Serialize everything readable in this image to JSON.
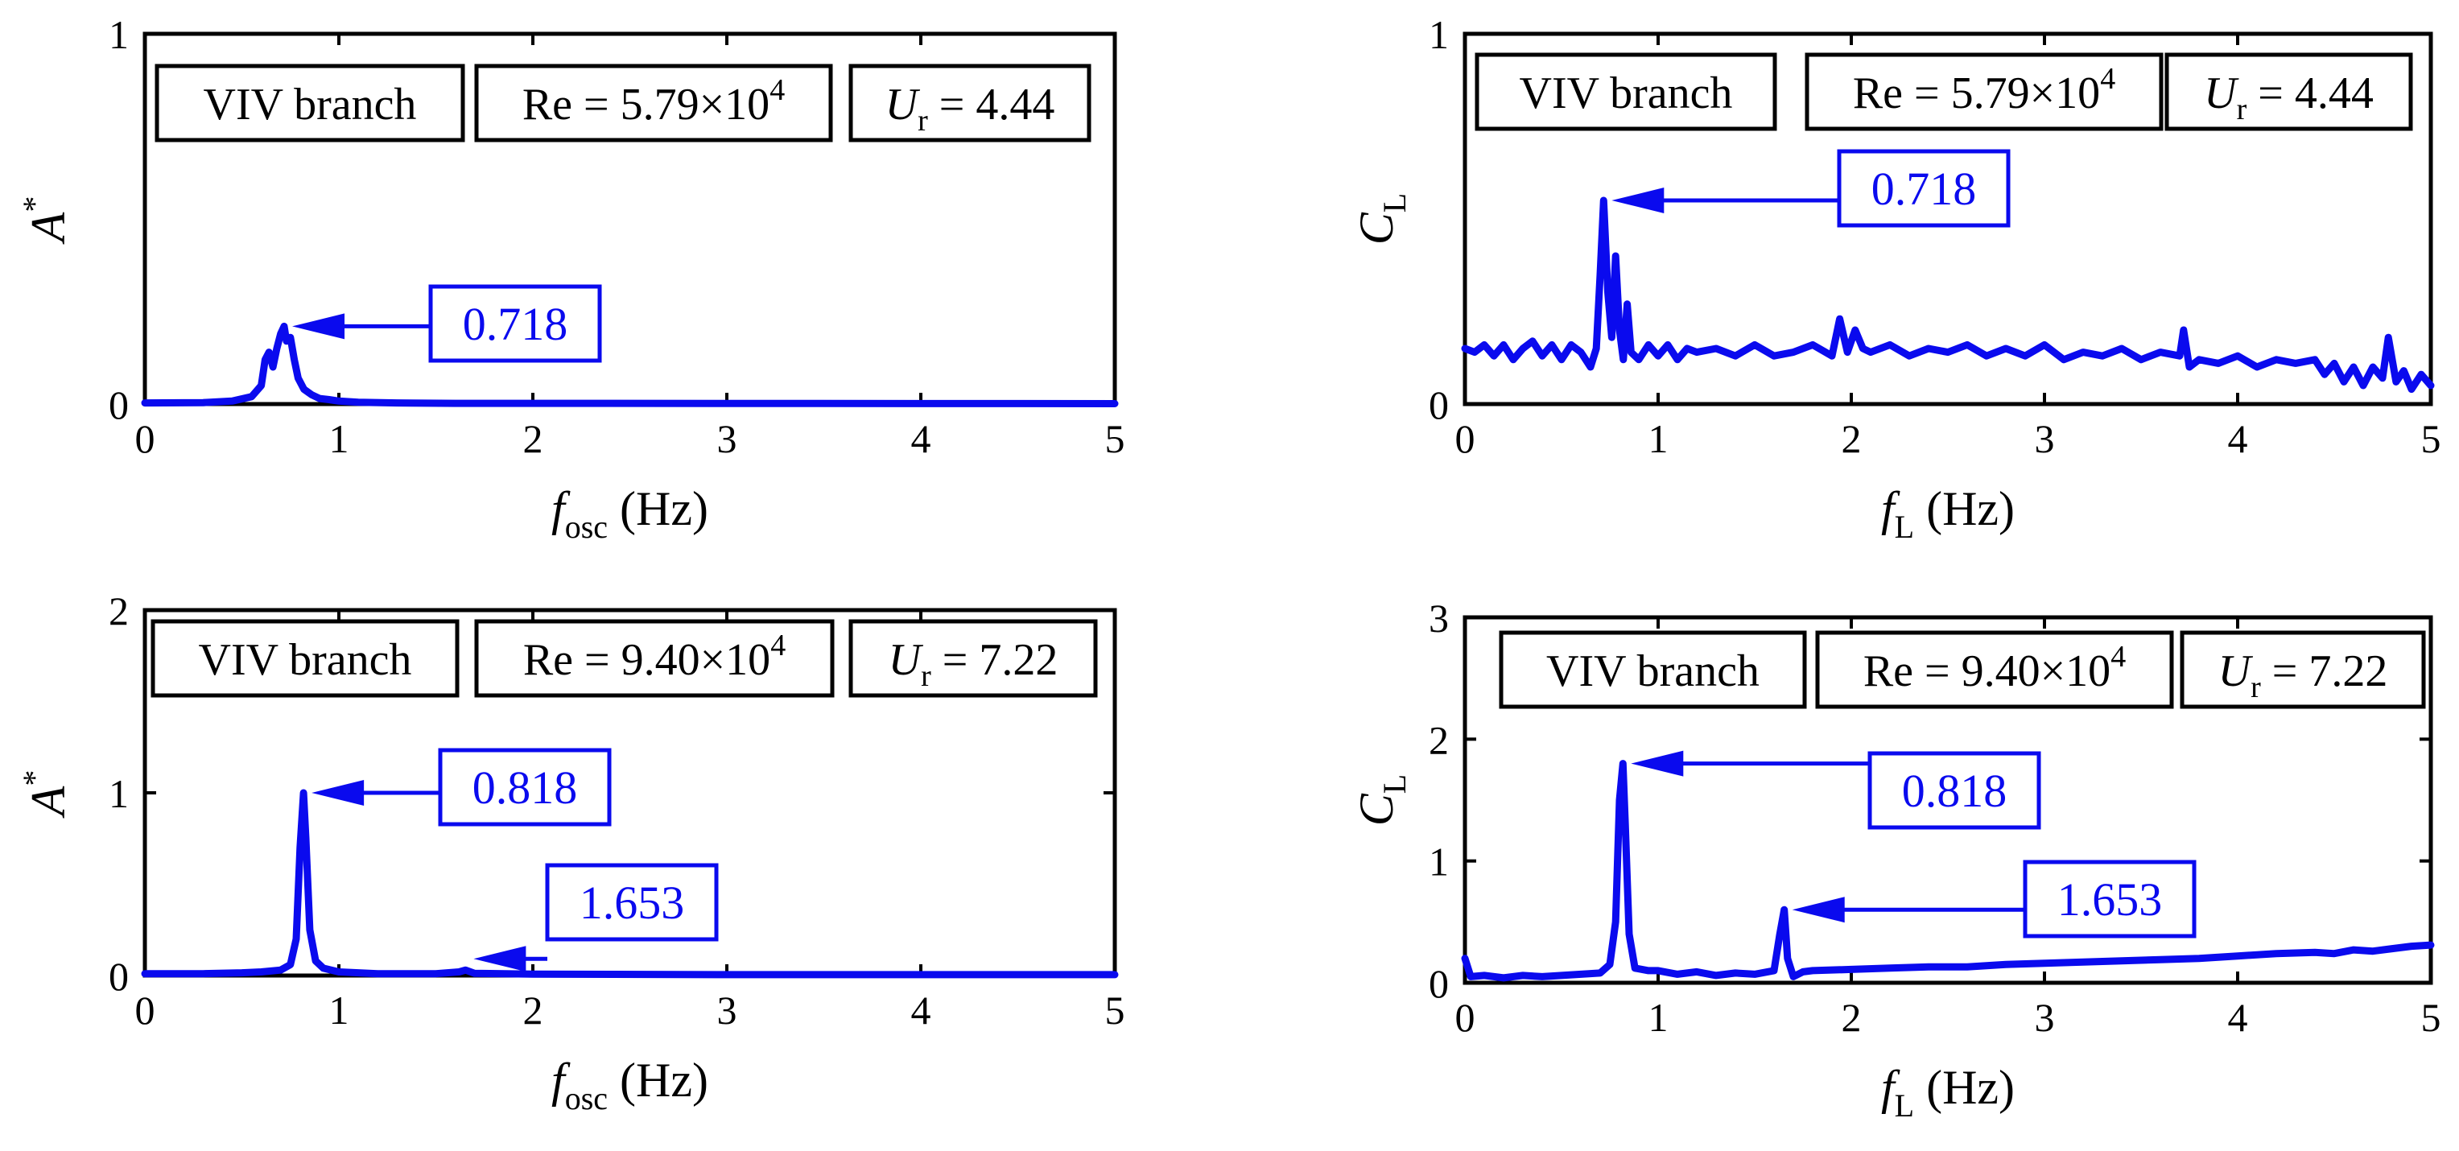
{
  "chart_data": [
    {
      "id": "top-left",
      "type": "line",
      "xlim": [
        0,
        5
      ],
      "ylim": [
        0,
        1
      ],
      "xticks": [
        0,
        1,
        2,
        3,
        4,
        5
      ],
      "yticks": [
        0,
        1
      ],
      "xlabel": {
        "main": "f",
        "sub": "osc",
        "unit": " (Hz)"
      },
      "ylabel": {
        "main": "A",
        "sup": "*"
      },
      "tags": {
        "branch": "VIV branch",
        "re_prefix": "Re = 5.79×10",
        "re_exp": "4",
        "ur_main": "U",
        "ur_sub": "r",
        "ur_value": " = 4.44"
      },
      "annotations": [
        {
          "label": "0.718",
          "x": 0.718,
          "y": 0.21
        }
      ],
      "series": {
        "name": "A*",
        "color": "#0a0aee",
        "points": [
          [
            0,
            0.003
          ],
          [
            0.3,
            0.004
          ],
          [
            0.45,
            0.008
          ],
          [
            0.55,
            0.02
          ],
          [
            0.6,
            0.05
          ],
          [
            0.62,
            0.12
          ],
          [
            0.64,
            0.14
          ],
          [
            0.66,
            0.1
          ],
          [
            0.68,
            0.15
          ],
          [
            0.7,
            0.19
          ],
          [
            0.718,
            0.21
          ],
          [
            0.73,
            0.17
          ],
          [
            0.75,
            0.18
          ],
          [
            0.77,
            0.12
          ],
          [
            0.79,
            0.07
          ],
          [
            0.82,
            0.04
          ],
          [
            0.86,
            0.025
          ],
          [
            0.9,
            0.015
          ],
          [
            0.95,
            0.012
          ],
          [
            1,
            0.008
          ],
          [
            1.1,
            0.005
          ],
          [
            1.3,
            0.003
          ],
          [
            1.6,
            0.002
          ],
          [
            2,
            0.002
          ],
          [
            5,
            0.001
          ]
        ]
      }
    },
    {
      "id": "top-right",
      "type": "line",
      "xlim": [
        0,
        5
      ],
      "ylim": [
        0,
        1
      ],
      "xticks": [
        0,
        1,
        2,
        3,
        4,
        5
      ],
      "yticks": [
        0,
        1
      ],
      "xlabel": {
        "main": "f",
        "sub": "L",
        "unit": " (Hz)"
      },
      "ylabel": {
        "main": "C",
        "sub": "L"
      },
      "tags": {
        "branch": "VIV branch",
        "re_prefix": "Re = 5.79×10",
        "re_exp": "4",
        "ur_main": "U",
        "ur_sub": "r",
        "ur_value": " = 4.44"
      },
      "annotations": [
        {
          "label": "0.718",
          "x": 0.718,
          "y": 0.55
        }
      ],
      "series": {
        "name": "CL",
        "color": "#0a0aee",
        "points": [
          [
            0,
            0.15
          ],
          [
            0.05,
            0.14
          ],
          [
            0.1,
            0.16
          ],
          [
            0.15,
            0.13
          ],
          [
            0.2,
            0.16
          ],
          [
            0.25,
            0.12
          ],
          [
            0.3,
            0.15
          ],
          [
            0.35,
            0.17
          ],
          [
            0.4,
            0.13
          ],
          [
            0.45,
            0.16
          ],
          [
            0.5,
            0.12
          ],
          [
            0.55,
            0.16
          ],
          [
            0.6,
            0.14
          ],
          [
            0.65,
            0.1
          ],
          [
            0.68,
            0.15
          ],
          [
            0.7,
            0.35
          ],
          [
            0.718,
            0.55
          ],
          [
            0.74,
            0.3
          ],
          [
            0.76,
            0.18
          ],
          [
            0.78,
            0.4
          ],
          [
            0.8,
            0.2
          ],
          [
            0.82,
            0.12
          ],
          [
            0.84,
            0.27
          ],
          [
            0.86,
            0.14
          ],
          [
            0.9,
            0.12
          ],
          [
            0.95,
            0.16
          ],
          [
            1,
            0.13
          ],
          [
            1.05,
            0.16
          ],
          [
            1.1,
            0.12
          ],
          [
            1.15,
            0.15
          ],
          [
            1.2,
            0.14
          ],
          [
            1.3,
            0.15
          ],
          [
            1.4,
            0.13
          ],
          [
            1.5,
            0.16
          ],
          [
            1.6,
            0.13
          ],
          [
            1.7,
            0.14
          ],
          [
            1.8,
            0.16
          ],
          [
            1.9,
            0.13
          ],
          [
            1.94,
            0.23
          ],
          [
            1.98,
            0.14
          ],
          [
            2.02,
            0.2
          ],
          [
            2.06,
            0.15
          ],
          [
            2.1,
            0.14
          ],
          [
            2.2,
            0.16
          ],
          [
            2.3,
            0.13
          ],
          [
            2.4,
            0.15
          ],
          [
            2.5,
            0.14
          ],
          [
            2.6,
            0.16
          ],
          [
            2.7,
            0.13
          ],
          [
            2.8,
            0.15
          ],
          [
            2.9,
            0.13
          ],
          [
            3,
            0.16
          ],
          [
            3.1,
            0.12
          ],
          [
            3.2,
            0.14
          ],
          [
            3.3,
            0.13
          ],
          [
            3.4,
            0.15
          ],
          [
            3.5,
            0.12
          ],
          [
            3.6,
            0.14
          ],
          [
            3.7,
            0.13
          ],
          [
            3.72,
            0.2
          ],
          [
            3.75,
            0.1
          ],
          [
            3.8,
            0.12
          ],
          [
            3.9,
            0.11
          ],
          [
            4,
            0.13
          ],
          [
            4.1,
            0.1
          ],
          [
            4.2,
            0.12
          ],
          [
            4.3,
            0.11
          ],
          [
            4.4,
            0.12
          ],
          [
            4.45,
            0.08
          ],
          [
            4.5,
            0.11
          ],
          [
            4.55,
            0.06
          ],
          [
            4.6,
            0.1
          ],
          [
            4.65,
            0.05
          ],
          [
            4.7,
            0.1
          ],
          [
            4.75,
            0.07
          ],
          [
            4.78,
            0.18
          ],
          [
            4.82,
            0.06
          ],
          [
            4.86,
            0.09
          ],
          [
            4.9,
            0.04
          ],
          [
            4.95,
            0.08
          ],
          [
            5,
            0.05
          ]
        ]
      }
    },
    {
      "id": "bottom-left",
      "type": "line",
      "xlim": [
        0,
        5
      ],
      "ylim": [
        0,
        2
      ],
      "xticks": [
        0,
        1,
        2,
        3,
        4,
        5
      ],
      "yticks": [
        0,
        1,
        2
      ],
      "xlabel": {
        "main": "f",
        "sub": "osc",
        "unit": " (Hz)"
      },
      "ylabel": {
        "main": "A",
        "sup": "*"
      },
      "tags": {
        "branch": "VIV branch",
        "re_prefix": "Re = 9.40×10",
        "re_exp": "4",
        "ur_main": "U",
        "ur_sub": "r",
        "ur_value": " = 7.22"
      },
      "annotations": [
        {
          "label": "0.818",
          "x": 0.818,
          "y": 1.0
        },
        {
          "label": "1.653",
          "x": 1.653,
          "y": 0.03
        }
      ],
      "series": {
        "name": "A*",
        "color": "#0a0aee",
        "points": [
          [
            0,
            0.01
          ],
          [
            0.3,
            0.01
          ],
          [
            0.5,
            0.015
          ],
          [
            0.6,
            0.02
          ],
          [
            0.7,
            0.03
          ],
          [
            0.75,
            0.06
          ],
          [
            0.78,
            0.2
          ],
          [
            0.8,
            0.7
          ],
          [
            0.818,
            1.0
          ],
          [
            0.83,
            0.75
          ],
          [
            0.85,
            0.25
          ],
          [
            0.88,
            0.08
          ],
          [
            0.92,
            0.04
          ],
          [
            1,
            0.02
          ],
          [
            1.2,
            0.01
          ],
          [
            1.5,
            0.01
          ],
          [
            1.62,
            0.02
          ],
          [
            1.653,
            0.03
          ],
          [
            1.7,
            0.012
          ],
          [
            2,
            0.008
          ],
          [
            3,
            0.005
          ],
          [
            5,
            0.005
          ]
        ]
      }
    },
    {
      "id": "bottom-right",
      "type": "line",
      "xlim": [
        0,
        5
      ],
      "ylim": [
        0,
        3
      ],
      "xticks": [
        0,
        1,
        2,
        3,
        4,
        5
      ],
      "yticks": [
        0,
        1,
        2,
        3
      ],
      "xlabel": {
        "main": "f",
        "sub": "L",
        "unit": " (Hz)"
      },
      "ylabel": {
        "main": "C",
        "sub": "L"
      },
      "tags": {
        "branch": "VIV branch",
        "re_prefix": "Re = 9.40×10",
        "re_exp": "4",
        "ur_main": "U",
        "ur_sub": "r",
        "ur_value": " = 7.22"
      },
      "annotations": [
        {
          "label": "0.818",
          "x": 0.818,
          "y": 1.8
        },
        {
          "label": "1.653",
          "x": 1.653,
          "y": 0.6
        }
      ],
      "series": {
        "name": "CL",
        "color": "#0a0aee",
        "points": [
          [
            0,
            0.2
          ],
          [
            0.03,
            0.05
          ],
          [
            0.1,
            0.06
          ],
          [
            0.2,
            0.04
          ],
          [
            0.3,
            0.06
          ],
          [
            0.4,
            0.05
          ],
          [
            0.5,
            0.06
          ],
          [
            0.6,
            0.07
          ],
          [
            0.7,
            0.08
          ],
          [
            0.75,
            0.15
          ],
          [
            0.78,
            0.5
          ],
          [
            0.8,
            1.5
          ],
          [
            0.818,
            1.8
          ],
          [
            0.83,
            1.3
          ],
          [
            0.85,
            0.4
          ],
          [
            0.88,
            0.12
          ],
          [
            0.95,
            0.1
          ],
          [
            1,
            0.1
          ],
          [
            1.1,
            0.07
          ],
          [
            1.2,
            0.09
          ],
          [
            1.3,
            0.06
          ],
          [
            1.4,
            0.08
          ],
          [
            1.5,
            0.07
          ],
          [
            1.6,
            0.1
          ],
          [
            1.63,
            0.4
          ],
          [
            1.653,
            0.6
          ],
          [
            1.67,
            0.2
          ],
          [
            1.7,
            0.05
          ],
          [
            1.75,
            0.09
          ],
          [
            1.8,
            0.1
          ],
          [
            2,
            0.11
          ],
          [
            2.2,
            0.12
          ],
          [
            2.4,
            0.13
          ],
          [
            2.6,
            0.13
          ],
          [
            2.8,
            0.15
          ],
          [
            3,
            0.16
          ],
          [
            3.2,
            0.17
          ],
          [
            3.4,
            0.18
          ],
          [
            3.6,
            0.19
          ],
          [
            3.8,
            0.2
          ],
          [
            4,
            0.22
          ],
          [
            4.2,
            0.24
          ],
          [
            4.4,
            0.25
          ],
          [
            4.5,
            0.24
          ],
          [
            4.6,
            0.27
          ],
          [
            4.7,
            0.26
          ],
          [
            4.8,
            0.28
          ],
          [
            4.9,
            0.3
          ],
          [
            5,
            0.31
          ]
        ]
      }
    }
  ]
}
